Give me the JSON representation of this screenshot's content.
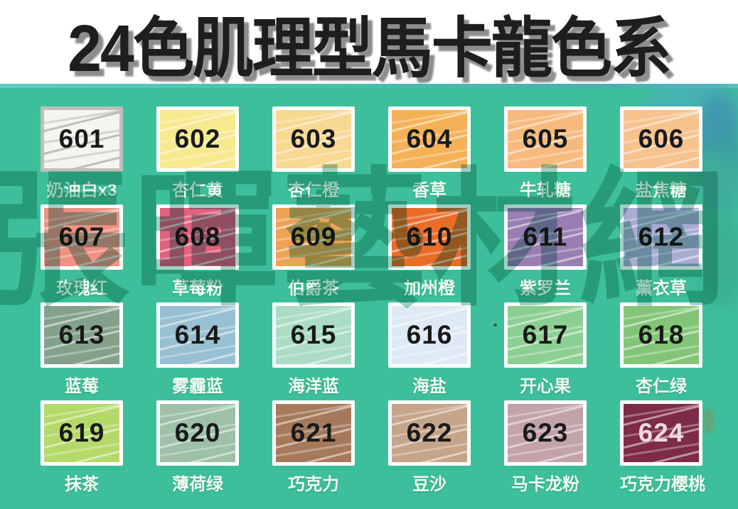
{
  "title": "24色肌理型馬卡龍色系",
  "watermark": "張暉藝材網",
  "colors": {
    "panel_background": "#3dbf9b",
    "title_color": "#1e1e1c",
    "title_shadow": "#8d8d8d",
    "label_color": "#f3fbf1",
    "watermark_color": "#1d8a70"
  },
  "swatches": [
    {
      "number": "601",
      "name": "奶油白x3",
      "color": "#f4f4f0",
      "border": "#bfbfba",
      "streak": "gray",
      "number_color": "#1a1a1a"
    },
    {
      "number": "602",
      "name": "杏仁黄",
      "color": "#f7e98e",
      "number_color": "#1a1a1a"
    },
    {
      "number": "603",
      "name": "杏仁橙",
      "color": "#f8d992",
      "number_color": "#1a1a1a"
    },
    {
      "number": "604",
      "name": "香草",
      "color": "#f4b158",
      "number_color": "#1a1a1a"
    },
    {
      "number": "605",
      "name": "牛轧糖",
      "color": "#f6ba7e",
      "number_color": "#1a1a1a"
    },
    {
      "number": "606",
      "name": "盐焦糖",
      "color": "#f6c28e",
      "number_color": "#1a1a1a"
    },
    {
      "number": "607",
      "name": "玫瑰红",
      "color": "#ef9183",
      "number_color": "#1a1a1a"
    },
    {
      "number": "608",
      "name": "草莓粉",
      "color": "#e2617e",
      "number_color": "#1a1a1a"
    },
    {
      "number": "609",
      "name": "伯爵茶",
      "color": "#eda356",
      "number_color": "#1a1a1a"
    },
    {
      "number": "610",
      "name": "加州橙",
      "color": "#ea6c29",
      "number_color": "#1a1a1a"
    },
    {
      "number": "611",
      "name": "紫罗兰",
      "color": "#9a7eb3",
      "number_color": "#1a1a1a"
    },
    {
      "number": "612",
      "name": "薰衣草",
      "color": "#a9abd2",
      "number_color": "#1a1a1a"
    },
    {
      "number": "613",
      "name": "蓝莓",
      "color": "#83a189",
      "number_color": "#1a1a1a"
    },
    {
      "number": "614",
      "name": "雾霾蓝",
      "color": "#97c0d2",
      "number_color": "#1a1a1a"
    },
    {
      "number": "615",
      "name": "海洋蓝",
      "color": "#abdcc6",
      "number_color": "#1a1a1a"
    },
    {
      "number": "616",
      "name": "海盐",
      "color": "#dde9f4",
      "number_color": "#1a1a1a"
    },
    {
      "number": "617",
      "name": "开心果",
      "color": "#8ccf92",
      "number_color": "#1a1a1a"
    },
    {
      "number": "618",
      "name": "杏仁绿",
      "color": "#83c577",
      "number_color": "#1a1a1a"
    },
    {
      "number": "619",
      "name": "抹茶",
      "color": "#b4d969",
      "number_color": "#1a1a1a"
    },
    {
      "number": "620",
      "name": "薄荷绿",
      "color": "#9dc0a6",
      "number_color": "#1a1a1a"
    },
    {
      "number": "621",
      "name": "巧克力",
      "color": "#a5795a",
      "number_color": "#1a1a1a"
    },
    {
      "number": "622",
      "name": "豆沙",
      "color": "#c5a489",
      "number_color": "#1a1a1a"
    },
    {
      "number": "623",
      "name": "马卡龙粉",
      "color": "#c1a3a9",
      "number_color": "#1a1a1a"
    },
    {
      "number": "624",
      "name": "巧克力樱桃",
      "color": "#7d2b49",
      "number_color": "#f2d8de"
    }
  ]
}
